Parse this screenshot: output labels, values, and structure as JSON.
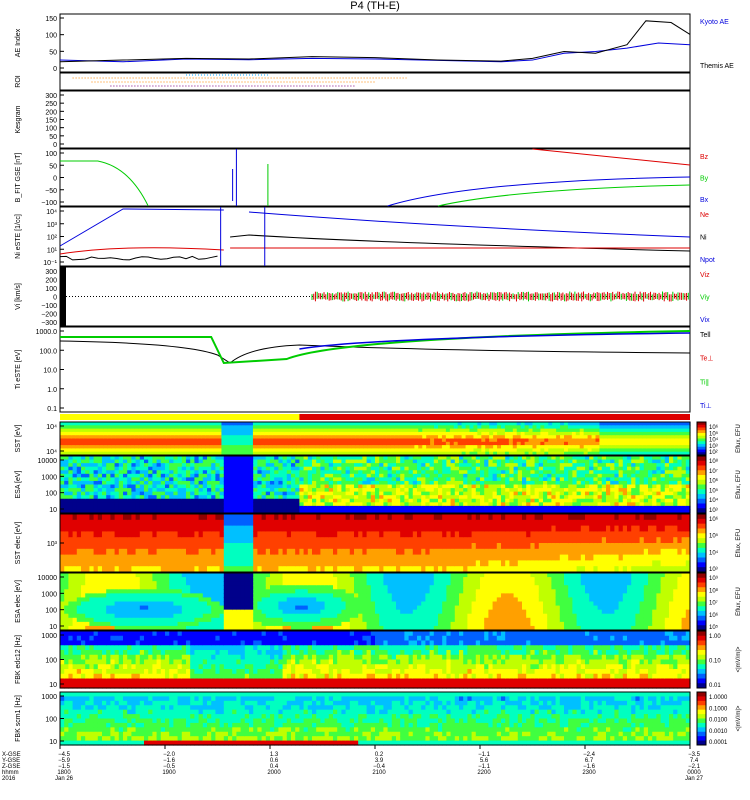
{
  "title": "P4 (TH-E)",
  "colors": {
    "black": "#000000",
    "blue": "#0000dd",
    "red": "#dd0000",
    "green": "#00cc00"
  },
  "chart_data": [
    {
      "type": "line",
      "panel": "ae",
      "ylabel": "AE Index",
      "yticks": [
        "150",
        "100",
        "50",
        "0"
      ],
      "ylim": [
        0,
        170
      ],
      "series": [
        {
          "name": "Kyoto AE",
          "color": "#0000dd",
          "x": [
            0,
            0.1,
            0.2,
            0.3,
            0.4,
            0.5,
            0.6,
            0.7,
            0.75,
            0.8,
            0.85,
            0.9,
            0.95,
            1.0
          ],
          "y": [
            35,
            30,
            38,
            36,
            40,
            38,
            34,
            30,
            35,
            55,
            60,
            70,
            85,
            80
          ]
        },
        {
          "name": "Themis AE",
          "color": "#000000",
          "x": [
            0,
            0.1,
            0.2,
            0.3,
            0.4,
            0.5,
            0.6,
            0.7,
            0.75,
            0.8,
            0.85,
            0.9,
            0.93,
            0.97,
            1.0
          ],
          "y": [
            30,
            35,
            40,
            38,
            45,
            42,
            35,
            32,
            40,
            60,
            55,
            80,
            150,
            145,
            110
          ]
        }
      ]
    },
    {
      "type": "line",
      "panel": "roi",
      "ylabel": "ROI"
    },
    {
      "type": "line",
      "panel": "kgram",
      "ylabel": "Kesgram",
      "yticks": [
        "300",
        "250",
        "200",
        "150",
        "100",
        "50",
        "0"
      ]
    },
    {
      "type": "line",
      "panel": "bfit",
      "ylabel": "B_FIT GSE [nT]",
      "yticks": [
        "100",
        "50",
        "0",
        "−50",
        "−100"
      ],
      "series": [
        {
          "name": "Bz",
          "color": "#dd0000"
        },
        {
          "name": "By",
          "color": "#00cc00"
        },
        {
          "name": "Bx",
          "color": "#0000dd"
        }
      ]
    },
    {
      "type": "line",
      "panel": "ni",
      "ylabel": "Ni eSTE [1/cc]",
      "yticks": [
        "10⁴",
        "10³",
        "10²",
        "10¹",
        "10⁻¹"
      ],
      "series": [
        {
          "name": "Ne",
          "color": "#dd0000"
        },
        {
          "name": "Ni",
          "color": "#000000"
        },
        {
          "name": "Npot",
          "color": "#0000dd"
        }
      ]
    },
    {
      "type": "line",
      "panel": "vi",
      "ylabel": "Vi [km/s]",
      "yticks": [
        "300",
        "200",
        "100",
        "0",
        "−100",
        "−200",
        "−300"
      ],
      "series": [
        {
          "name": "Viz",
          "color": "#dd0000"
        },
        {
          "name": "Viy",
          "color": "#00cc00"
        },
        {
          "name": "Vix",
          "color": "#0000dd"
        }
      ]
    },
    {
      "type": "line",
      "panel": "ti",
      "ylabel": "Ti eSTE [eV]",
      "yticks": [
        "1000.0",
        "100.0",
        "10.0",
        "1.0",
        "0.1"
      ],
      "series": [
        {
          "name": "Tell",
          "color": "#000000"
        },
        {
          "name": "Te⊥",
          "color": "#dd0000"
        },
        {
          "name": "Ti∥",
          "color": "#00cc00"
        },
        {
          "name": "Ti⊥",
          "color": "#0000dd"
        }
      ]
    },
    {
      "type": "heatmap",
      "panel": "sst_i",
      "ylabel": "SST [eV]",
      "yticks": [
        "10⁴",
        "10⁴"
      ],
      "colorbar_label": "Eflux, EFU",
      "colorbar_ticks": [
        "10⁶",
        "10⁵",
        "10⁴",
        "10³",
        "10²"
      ]
    },
    {
      "type": "heatmap",
      "panel": "esa_i",
      "ylabel": "ESA [eV]",
      "yticks": [
        "10000",
        "1000",
        "100",
        "10"
      ],
      "colorbar_label": "Eflux, EFU",
      "colorbar_ticks": [
        "10⁸",
        "10⁷",
        "10⁶",
        "10⁵",
        "10⁴",
        "10³"
      ]
    },
    {
      "type": "heatmap",
      "panel": "sst_e",
      "ylabel": "SST elec [eV]",
      "yticks": [
        "10³"
      ],
      "colorbar_label": "Eflux, EFU",
      "colorbar_ticks": [
        "10⁶",
        "10⁵",
        "10⁴",
        "10³"
      ]
    },
    {
      "type": "heatmap",
      "panel": "esa_e",
      "ylabel": "ESA elec [eV]",
      "yticks": [
        "10000",
        "1000",
        "100",
        "10"
      ],
      "colorbar_label": "Eflux, EFU",
      "colorbar_ticks": [
        "10⁹",
        "10⁸",
        "10⁷",
        "10⁶",
        "10⁵"
      ]
    },
    {
      "type": "heatmap",
      "panel": "fbk_e",
      "ylabel": "FBK edc12 [Hz]",
      "yticks": [
        "1000",
        "100",
        "10"
      ],
      "colorbar_label": "<|mV/m|>",
      "colorbar_ticks": [
        "1.00",
        "0.10",
        "0.01"
      ]
    },
    {
      "type": "heatmap",
      "panel": "fbk_b",
      "ylabel": "FBK scm1 [Hz]",
      "yticks": [
        "1000",
        "100",
        "10"
      ],
      "colorbar_label": "<|mV/m|>",
      "colorbar_ticks": [
        "1.0000",
        "0.1000",
        "0.0100",
        "0.0010",
        "0.0001"
      ]
    }
  ],
  "right_labels": {
    "ae": [
      "Kyoto AE",
      "Themis AE"
    ],
    "bfit": [
      "Bz",
      "By",
      "Bx"
    ],
    "ni": [
      "Ne",
      "Ni",
      "Npot"
    ],
    "vi": [
      "Viz",
      "Viy",
      "Vix"
    ],
    "ti": [
      "Tell",
      "Te⊥",
      "Ti∥",
      "Ti⊥"
    ]
  },
  "xaxis": {
    "row_labels": [
      "X-GSE",
      "Y-GSE",
      "Z-GSE",
      "hhmm",
      "2016"
    ],
    "columns": [
      {
        "xgse": "−4.5",
        "ygse": "−5.9",
        "zgse": "−1.5",
        "hhmm": "1800",
        "date": "Jan 26"
      },
      {
        "xgse": "−2.0",
        "ygse": "−1.6",
        "zgse": "−0.5",
        "hhmm": "1900",
        "date": ""
      },
      {
        "xgse": "1.3",
        "ygse": "0.6",
        "zgse": "0.4",
        "hhmm": "2000",
        "date": ""
      },
      {
        "xgse": "0.2",
        "ygse": "3.9",
        "zgse": "−0.4",
        "hhmm": "2100",
        "date": ""
      },
      {
        "xgse": "−1.1",
        "ygse": "5.6",
        "zgse": "−1.1",
        "hhmm": "2200",
        "date": ""
      },
      {
        "xgse": "−2.4",
        "ygse": "6.7",
        "zgse": "−1.6",
        "hhmm": "2300",
        "date": ""
      },
      {
        "xgse": "−3.5",
        "ygse": "7.4",
        "zgse": "−2.1",
        "hhmm": "0000",
        "date": "Jan 27"
      }
    ]
  }
}
